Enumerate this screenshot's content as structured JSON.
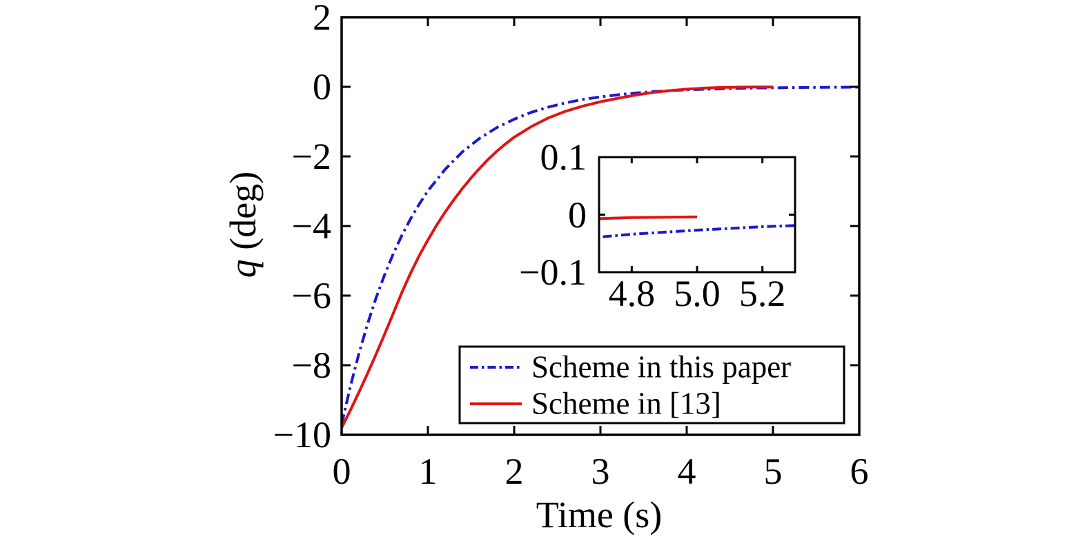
{
  "figure": {
    "background": "#ffffff"
  },
  "chart_data": {
    "type": "line",
    "title": "",
    "xlabel": "Time (s)",
    "ylabel": "q (deg)",
    "ylabel_var": "q",
    "ylabel_unit": " (deg)",
    "xlim": [
      0,
      6
    ],
    "ylim": [
      -10,
      2
    ],
    "xticks": [
      0,
      1,
      2,
      3,
      4,
      5,
      6
    ],
    "xtick_labels": [
      "0",
      "1",
      "2",
      "3",
      "4",
      "5",
      "6"
    ],
    "yticks": [
      2,
      0,
      -2,
      -4,
      -6,
      -8,
      -10
    ],
    "ytick_labels": [
      "2",
      "0",
      "−2",
      "−4",
      "−6",
      "−8",
      "−10"
    ],
    "grid": false,
    "axis_color": "#000000",
    "legend": {
      "position": "inside lower-right",
      "border_color": "#000000",
      "background": "#ffffff"
    },
    "series": [
      {
        "name": "Scheme in this paper",
        "color": "#1a1acd",
        "line_style": "dash-dot",
        "points": [
          [
            0,
            -9.7
          ],
          [
            0.1,
            -8.62
          ],
          [
            0.2,
            -7.67
          ],
          [
            0.3,
            -6.82
          ],
          [
            0.4,
            -6.06
          ],
          [
            0.5,
            -5.39
          ],
          [
            0.6,
            -4.79
          ],
          [
            0.7,
            -4.26
          ],
          [
            0.8,
            -3.79
          ],
          [
            0.9,
            -3.37
          ],
          [
            1.0,
            -2.99
          ],
          [
            1.2,
            -2.37
          ],
          [
            1.4,
            -1.87
          ],
          [
            1.6,
            -1.48
          ],
          [
            1.8,
            -1.17
          ],
          [
            2.0,
            -0.93
          ],
          [
            2.2,
            -0.73
          ],
          [
            2.4,
            -0.58
          ],
          [
            2.6,
            -0.46
          ],
          [
            2.8,
            -0.36
          ],
          [
            3.0,
            -0.29
          ],
          [
            3.2,
            -0.23
          ],
          [
            3.4,
            -0.18
          ],
          [
            3.6,
            -0.14
          ],
          [
            3.8,
            -0.11
          ],
          [
            4.0,
            -0.088
          ],
          [
            4.2,
            -0.07
          ],
          [
            4.4,
            -0.055
          ],
          [
            4.6,
            -0.044
          ],
          [
            4.8,
            -0.034
          ],
          [
            5.0,
            -0.027
          ],
          [
            5.2,
            -0.021
          ],
          [
            5.4,
            -0.017
          ],
          [
            5.6,
            -0.013
          ],
          [
            5.8,
            -0.011
          ],
          [
            6.0,
            -0.008
          ]
        ]
      },
      {
        "name": "Scheme in [13]",
        "color": "#e01414",
        "line_style": "solid",
        "points": [
          [
            0,
            -9.8
          ],
          [
            0.1,
            -9.3
          ],
          [
            0.2,
            -8.78
          ],
          [
            0.3,
            -8.24
          ],
          [
            0.4,
            -7.68
          ],
          [
            0.5,
            -7.1
          ],
          [
            0.6,
            -6.5
          ],
          [
            0.7,
            -5.9
          ],
          [
            0.8,
            -5.35
          ],
          [
            0.9,
            -4.85
          ],
          [
            1.0,
            -4.4
          ],
          [
            1.1,
            -3.98
          ],
          [
            1.2,
            -3.6
          ],
          [
            1.3,
            -3.25
          ],
          [
            1.4,
            -2.92
          ],
          [
            1.5,
            -2.62
          ],
          [
            1.6,
            -2.34
          ],
          [
            1.7,
            -2.08
          ],
          [
            1.8,
            -1.85
          ],
          [
            1.9,
            -1.64
          ],
          [
            2.0,
            -1.45
          ],
          [
            2.2,
            -1.14
          ],
          [
            2.4,
            -0.89
          ],
          [
            2.6,
            -0.7
          ],
          [
            2.8,
            -0.55
          ],
          [
            3.0,
            -0.43
          ],
          [
            3.2,
            -0.33
          ],
          [
            3.4,
            -0.24
          ],
          [
            3.6,
            -0.165
          ],
          [
            3.8,
            -0.11
          ],
          [
            4.0,
            -0.068
          ],
          [
            4.2,
            -0.038
          ],
          [
            4.4,
            -0.018
          ],
          [
            4.6,
            -0.009
          ],
          [
            4.8,
            -0.005
          ],
          [
            5.0,
            -0.004
          ]
        ]
      }
    ],
    "inset": {
      "xlim": [
        4.7,
        5.3
      ],
      "ylim": [
        -0.1,
        0.1
      ],
      "xticks": [
        4.8,
        5.0,
        5.2
      ],
      "xtick_labels": [
        "4.8",
        "5.0",
        "5.2"
      ],
      "yticks": [
        0.1,
        0,
        -0.1
      ],
      "ytick_labels": [
        "0.1",
        "0",
        "−0.1"
      ]
    }
  }
}
